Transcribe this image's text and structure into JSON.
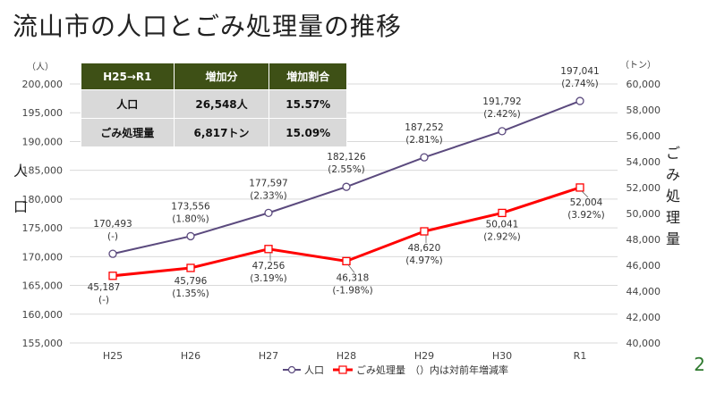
{
  "title": "流山市の人口とごみ処理量の推移",
  "page_number": "2",
  "summary_table": {
    "headers": [
      "H25→R1",
      "増加分",
      "増加割合"
    ],
    "rows": [
      [
        "人口",
        "26,548人",
        "15.57%"
      ],
      [
        "ごみ処理量",
        "6,817トン",
        "15.09%"
      ]
    ]
  },
  "chart_data": {
    "type": "line",
    "title": "",
    "categories": [
      "H25",
      "H26",
      "H27",
      "H28",
      "H29",
      "H30",
      "R1"
    ],
    "ylabel_left": "人口",
    "ylabel_right": "ごみ処理量",
    "unit_left": "（人）",
    "unit_right": "（トン）",
    "ylim_left": [
      155000,
      200000
    ],
    "ylim_right": [
      40000,
      60000
    ],
    "yticks_left": [
      "155,000",
      "160,000",
      "165,000",
      "170,000",
      "175,000",
      "180,000",
      "185,000",
      "190,000",
      "195,000",
      "200,000"
    ],
    "yticks_right": [
      "40,000",
      "42,000",
      "44,000",
      "46,000",
      "48,000",
      "50,000",
      "52,000",
      "54,000",
      "56,000",
      "58,000",
      "60,000"
    ],
    "grid": true,
    "legend_position": "bottom",
    "legend_note": "（）内は対前年増減率",
    "series": [
      {
        "name": "人口",
        "axis": "left",
        "color": "#5b4a7e",
        "marker": "circle",
        "values": [
          170493,
          173556,
          177597,
          182126,
          187252,
          191792,
          197041
        ],
        "value_labels": [
          "170,493",
          "173,556",
          "177,597",
          "182,126",
          "187,252",
          "191,792",
          "197,041"
        ],
        "rate_labels": [
          "(-)",
          "(1.80%)",
          "(2.33%)",
          "(2.55%)",
          "(2.81%)",
          "(2.42%)",
          "(2.74%)"
        ]
      },
      {
        "name": "ごみ処理量",
        "axis": "right",
        "color": "#ff0000",
        "marker": "square",
        "values": [
          45187,
          45796,
          47256,
          46318,
          48620,
          50041,
          52004
        ],
        "value_labels": [
          "45,187",
          "45,796",
          "47,256",
          "46,318",
          "48,620",
          "50,041",
          "52,004"
        ],
        "rate_labels": [
          "(-)",
          "(1.35%)",
          "(3.19%)",
          "(-1.98%)",
          "(4.97%)",
          "(2.92%)",
          "(3.92%)"
        ]
      }
    ]
  }
}
